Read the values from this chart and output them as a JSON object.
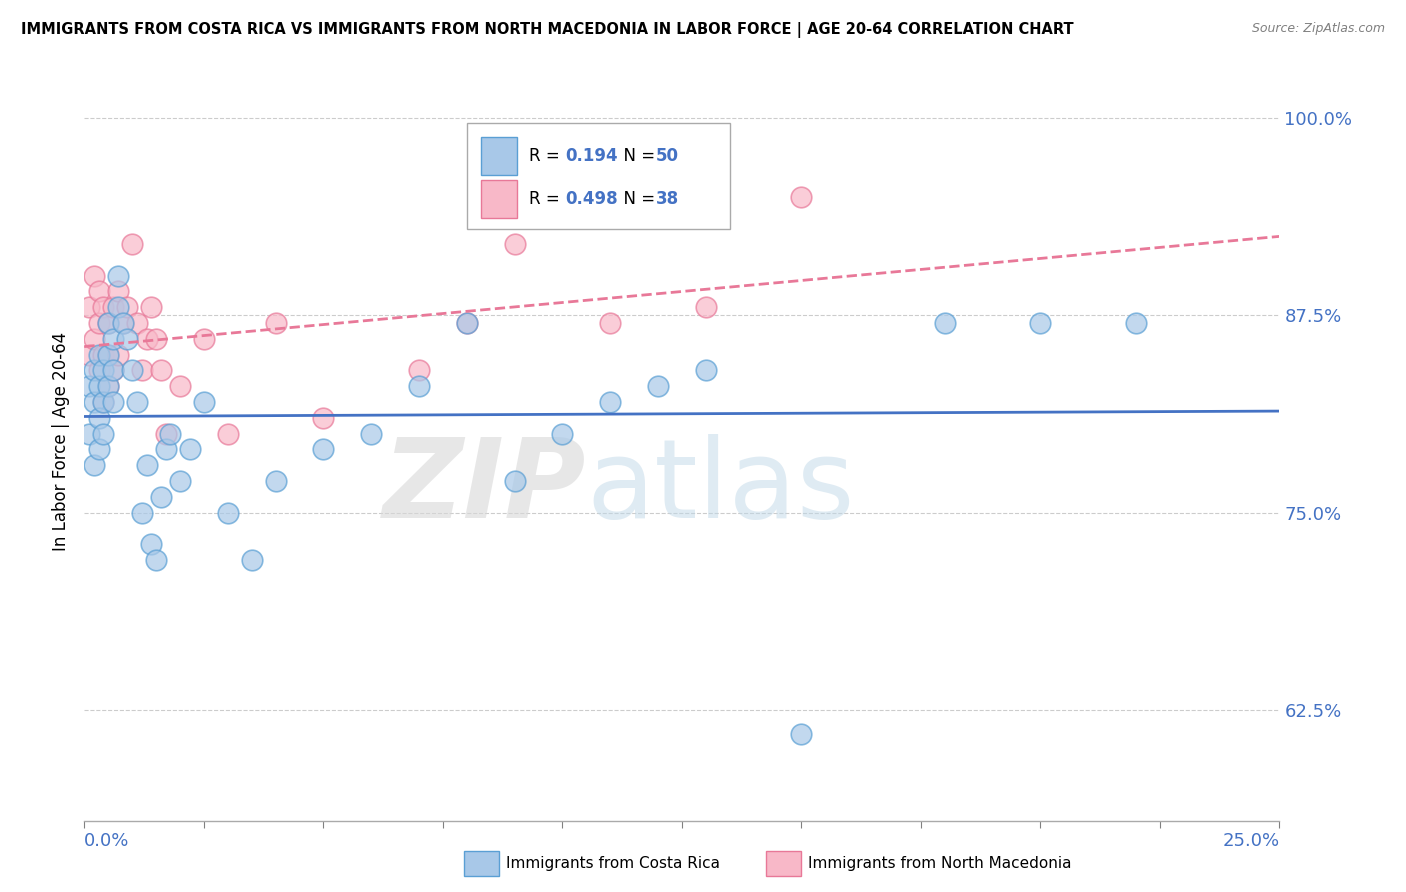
{
  "title": "IMMIGRANTS FROM COSTA RICA VS IMMIGRANTS FROM NORTH MACEDONIA IN LABOR FORCE | AGE 20-64 CORRELATION CHART",
  "source": "Source: ZipAtlas.com",
  "ylabel": "In Labor Force | Age 20-64",
  "yticks": [
    0.625,
    0.75,
    0.875,
    1.0
  ],
  "ytick_labels": [
    "62.5%",
    "75.0%",
    "87.5%",
    "100.0%"
  ],
  "xtick_labels": [
    "0.0%",
    "25.0%"
  ],
  "xlim": [
    0.0,
    0.25
  ],
  "ylim": [
    0.555,
    1.035
  ],
  "blue_color": "#a8c8e8",
  "blue_edge": "#5a9fd4",
  "pink_color": "#f8b8c8",
  "pink_edge": "#e87898",
  "blue_line_color": "#4472c4",
  "pink_line_color": "#e87898",
  "tick_color": "#4472c4",
  "legend_blue_R": "0.194",
  "legend_blue_N": "50",
  "legend_pink_R": "0.498",
  "legend_pink_N": "38",
  "blue_x": [
    0.001,
    0.001,
    0.002,
    0.002,
    0.002,
    0.003,
    0.003,
    0.003,
    0.003,
    0.004,
    0.004,
    0.004,
    0.005,
    0.005,
    0.005,
    0.006,
    0.006,
    0.006,
    0.007,
    0.007,
    0.008,
    0.009,
    0.01,
    0.011,
    0.012,
    0.013,
    0.014,
    0.015,
    0.016,
    0.017,
    0.018,
    0.02,
    0.022,
    0.025,
    0.03,
    0.035,
    0.04,
    0.05,
    0.06,
    0.07,
    0.08,
    0.09,
    0.1,
    0.11,
    0.12,
    0.13,
    0.15,
    0.18,
    0.2,
    0.22
  ],
  "blue_y": [
    0.8,
    0.83,
    0.82,
    0.84,
    0.78,
    0.85,
    0.83,
    0.81,
    0.79,
    0.82,
    0.84,
    0.8,
    0.83,
    0.85,
    0.87,
    0.86,
    0.84,
    0.82,
    0.88,
    0.9,
    0.87,
    0.86,
    0.84,
    0.82,
    0.75,
    0.78,
    0.73,
    0.72,
    0.76,
    0.79,
    0.8,
    0.77,
    0.79,
    0.82,
    0.75,
    0.72,
    0.77,
    0.79,
    0.8,
    0.83,
    0.87,
    0.77,
    0.8,
    0.82,
    0.83,
    0.84,
    0.61,
    0.87,
    0.87,
    0.87
  ],
  "pink_x": [
    0.001,
    0.001,
    0.002,
    0.002,
    0.003,
    0.003,
    0.003,
    0.004,
    0.004,
    0.004,
    0.005,
    0.005,
    0.005,
    0.006,
    0.006,
    0.007,
    0.007,
    0.008,
    0.009,
    0.01,
    0.011,
    0.012,
    0.013,
    0.014,
    0.015,
    0.016,
    0.017,
    0.02,
    0.025,
    0.03,
    0.04,
    0.05,
    0.07,
    0.08,
    0.09,
    0.11,
    0.13,
    0.15
  ],
  "pink_y": [
    0.85,
    0.88,
    0.9,
    0.86,
    0.87,
    0.89,
    0.84,
    0.88,
    0.85,
    0.82,
    0.83,
    0.87,
    0.85,
    0.88,
    0.84,
    0.89,
    0.85,
    0.87,
    0.88,
    0.92,
    0.87,
    0.84,
    0.86,
    0.88,
    0.86,
    0.84,
    0.8,
    0.83,
    0.86,
    0.8,
    0.87,
    0.81,
    0.84,
    0.87,
    0.92,
    0.87,
    0.88,
    0.95
  ]
}
